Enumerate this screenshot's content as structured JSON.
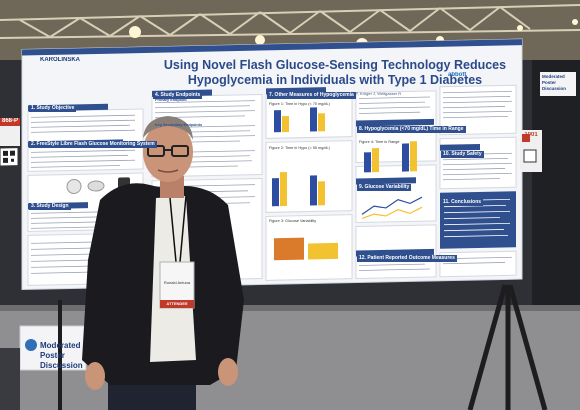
{
  "poster": {
    "title": "Using Novel Flash Glucose-Sensing Technology Reduces Hypoglycemia in Individuals with Type 1 Diabetes",
    "authors": "Bolinder J, Antuna R, Geelhoed-Duijvestijn P, Kröger J, Weitgasser R",
    "logos": [
      "KAROLINSKA",
      "abbott"
    ],
    "sections": {
      "study_objective": "1. Study Objective",
      "study_design_freestyle": "2. FreeStyle Libre Flash Glucose Monitoring System",
      "study_design": "3. Study Design",
      "study_endpoints": "4. Study Endpoints",
      "primary_endpoint": "Primary Endpoint",
      "key_secondary": "Key Secondary Endpoints",
      "other_measures": "7. Other Measures of Hypoglycemia",
      "hypoglycemia_time": "8. Hypoglycemia (<70 mg/dL) Time in Range",
      "hba1c": "HbA1c",
      "glucose_variability": "9. Glucose Variability",
      "conclusions": "11. Conclusions",
      "patient_outcomes": "12. Patient Reported Outcome Measures",
      "summary": "10. Study Safety"
    },
    "figures": {
      "fig1": "Figure 1: Time in Hypo (< 70 mg/dL)",
      "fig2": "Figure 2: Time in Hypo (< 55 mg/dL)",
      "fig3": "Figure 3: Glucose Variability",
      "fig4": "Figure 4: Time in Range"
    }
  },
  "side_signs": {
    "moderated_label": "Moderated Poster Discussion",
    "right_sign": "Moderated Poster Discussion",
    "left_number": "868-P",
    "right_number": "1001"
  },
  "person": {
    "badge_name": "Ronald Antuna",
    "badge_ribbon": "ATTENDEE"
  },
  "colors": {
    "poster_bg": "#f4f5f8",
    "poster_blue": "#2f4f8f",
    "bar_blue": "#2d4ea0",
    "bar_yellow": "#f2c230",
    "board": "#2e3036",
    "ceiling": "#9a8f78",
    "floor": "#8f8f92",
    "jacket": "#1b1b1f",
    "skin": "#c99478"
  }
}
